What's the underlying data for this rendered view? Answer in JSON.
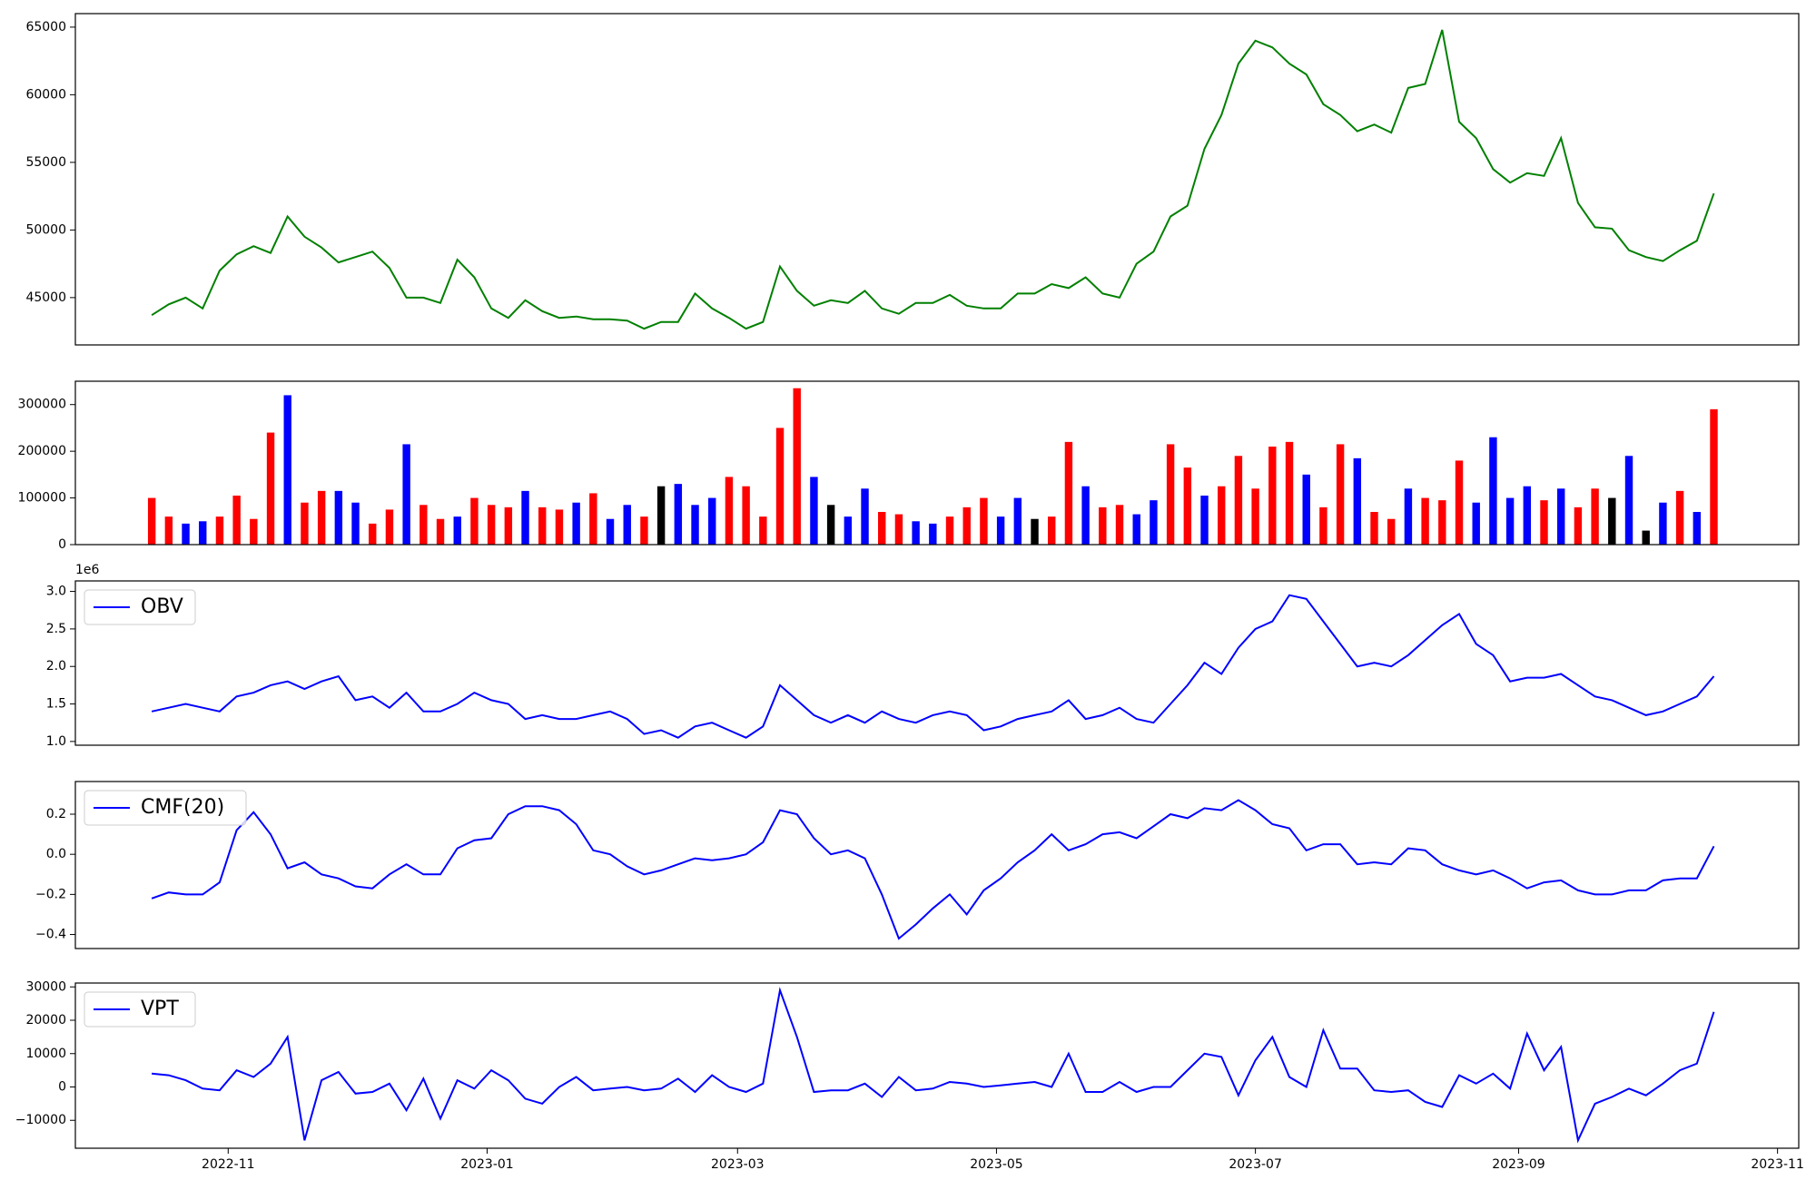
{
  "chart_data": [
    {
      "type": "line",
      "color": "green",
      "x": [
        19279,
        19283,
        19287,
        19291,
        19295,
        19299,
        19303,
        19307,
        19311,
        19315,
        19319,
        19323,
        19327,
        19331,
        19335,
        19339,
        19343,
        19347,
        19351,
        19355,
        19359,
        19363,
        19367,
        19371,
        19375,
        19379,
        19383,
        19387,
        19391,
        19395,
        19399,
        19403,
        19407,
        19411,
        19415,
        19419,
        19423,
        19427,
        19431,
        19435,
        19439,
        19443,
        19447,
        19451,
        19455,
        19459,
        19463,
        19467,
        19471,
        19475,
        19479,
        19483,
        19487,
        19491,
        19495,
        19499,
        19503,
        19507,
        19511,
        19515,
        19519,
        19523,
        19527,
        19531,
        19535,
        19539,
        19543,
        19547,
        19551,
        19555,
        19559,
        19563,
        19567,
        19571,
        19575,
        19579,
        19583,
        19587,
        19591,
        19595,
        19599,
        19603,
        19607,
        19611,
        19615,
        19619,
        19623,
        19627,
        19631,
        19635,
        19639,
        19643,
        19647
      ],
      "values": [
        43700,
        44500,
        45000,
        44200,
        47000,
        48200,
        48800,
        48300,
        51000,
        49500,
        48700,
        47600,
        48000,
        48400,
        47200,
        45000,
        45000,
        44600,
        47800,
        46500,
        44200,
        43500,
        44800,
        44000,
        43500,
        43600,
        43400,
        43400,
        43300,
        42700,
        43200,
        43200,
        45300,
        44200,
        43500,
        42700,
        43200,
        47300,
        45500,
        44400,
        44800,
        44600,
        45500,
        44200,
        43800,
        44600,
        44600,
        45200,
        44400,
        44200,
        44200,
        45300,
        45300,
        46000,
        45700,
        46500,
        45300,
        45000,
        47500,
        48400,
        51000,
        51800,
        56000,
        58500,
        62300,
        64000,
        63500,
        62300,
        61500,
        59300,
        58500,
        57300,
        57800,
        57200,
        60500,
        60800,
        64800,
        58000,
        56800,
        54500,
        53500,
        54200,
        54000,
        56800,
        52000,
        50200,
        50100,
        48500,
        48000,
        47700,
        48500,
        49200,
        52700
      ],
      "xlim": [
        19261,
        19667
      ],
      "ylim": [
        41500,
        66000
      ],
      "yticks": [
        45000,
        50000,
        55000,
        60000,
        65000
      ]
    },
    {
      "type": "bar",
      "values": [
        100000,
        60000,
        45000,
        50000,
        60000,
        105000,
        55000,
        240000,
        320000,
        90000,
        115000,
        115000,
        90000,
        45000,
        75000,
        215000,
        85000,
        55000,
        60000,
        100000,
        85000,
        80000,
        115000,
        80000,
        75000,
        90000,
        110000,
        55000,
        85000,
        60000,
        125000,
        130000,
        85000,
        100000,
        145000,
        125000,
        60000,
        250000,
        335000,
        145000,
        85000,
        60000,
        120000,
        70000,
        65000,
        50000,
        45000,
        60000,
        80000,
        100000,
        60000,
        100000,
        55000,
        60000,
        220000,
        125000,
        80000,
        85000,
        65000,
        95000,
        215000,
        165000,
        105000,
        125000,
        190000,
        120000,
        210000,
        220000,
        150000,
        80000,
        215000,
        185000,
        70000,
        55000,
        120000,
        100000,
        95000,
        180000,
        90000,
        230000,
        100000,
        125000,
        95000,
        120000,
        80000,
        120000,
        100000,
        190000,
        30000,
        90000,
        115000,
        70000,
        290000
      ],
      "colors": [
        "#ff0000",
        "#ff0000",
        "#0000ff",
        "#0000ff",
        "#ff0000",
        "#ff0000",
        "#ff0000",
        "#ff0000",
        "#0000ff",
        "#ff0000",
        "#ff0000",
        "#0000ff",
        "#0000ff",
        "#ff0000",
        "#ff0000",
        "#0000ff",
        "#ff0000",
        "#ff0000",
        "#0000ff",
        "#ff0000",
        "#ff0000",
        "#ff0000",
        "#0000ff",
        "#ff0000",
        "#ff0000",
        "#0000ff",
        "#ff0000",
        "#0000ff",
        "#0000ff",
        "#ff0000",
        "#000000",
        "#0000ff",
        "#0000ff",
        "#0000ff",
        "#ff0000",
        "#ff0000",
        "#ff0000",
        "#ff0000",
        "#ff0000",
        "#0000ff",
        "#000000",
        "#0000ff",
        "#0000ff",
        "#ff0000",
        "#ff0000",
        "#0000ff",
        "#0000ff",
        "#ff0000",
        "#ff0000",
        "#ff0000",
        "#0000ff",
        "#0000ff",
        "#000000",
        "#ff0000",
        "#ff0000",
        "#0000ff",
        "#ff0000",
        "#ff0000",
        "#0000ff",
        "#0000ff",
        "#ff0000",
        "#ff0000",
        "#0000ff",
        "#ff0000",
        "#ff0000",
        "#ff0000",
        "#ff0000",
        "#ff0000",
        "#0000ff",
        "#ff0000",
        "#ff0000",
        "#0000ff",
        "#ff0000",
        "#ff0000",
        "#0000ff",
        "#ff0000",
        "#ff0000",
        "#ff0000",
        "#0000ff",
        "#0000ff",
        "#0000ff",
        "#0000ff",
        "#ff0000",
        "#0000ff",
        "#ff0000",
        "#ff0000",
        "#000000",
        "#0000ff",
        "#000000",
        "#0000ff",
        "#ff0000",
        "#0000ff",
        "#ff0000"
      ],
      "ylim": [
        0,
        350000
      ],
      "yticks": [
        0,
        100000,
        200000,
        300000
      ]
    },
    {
      "type": "line",
      "legend": "upper left",
      "series": [
        {
          "name": "OBV",
          "color": "blue",
          "values": [
            1400000,
            1450000,
            1500000,
            1450000,
            1400000,
            1600000,
            1650000,
            1750000,
            1800000,
            1700000,
            1800000,
            1870000,
            1550000,
            1600000,
            1450000,
            1650000,
            1400000,
            1400000,
            1500000,
            1650000,
            1550000,
            1500000,
            1300000,
            1350000,
            1300000,
            1300000,
            1350000,
            1400000,
            1300000,
            1100000,
            1150000,
            1050000,
            1200000,
            1250000,
            1150000,
            1050000,
            1200000,
            1750000,
            1550000,
            1350000,
            1250000,
            1350000,
            1250000,
            1400000,
            1300000,
            1250000,
            1350000,
            1400000,
            1350000,
            1150000,
            1200000,
            1300000,
            1350000,
            1400000,
            1550000,
            1300000,
            1350000,
            1450000,
            1300000,
            1250000,
            1500000,
            1750000,
            2050000,
            1900000,
            2250000,
            2500000,
            2600000,
            2950000,
            2900000,
            2600000,
            2300000,
            2000000,
            2050000,
            2000000,
            2150000,
            2350000,
            2550000,
            2700000,
            2300000,
            2150000,
            1800000,
            1850000,
            1850000,
            1900000,
            1750000,
            1600000,
            1550000,
            1450000,
            1350000,
            1400000,
            1500000,
            1600000,
            1870000
          ]
        }
      ],
      "ylim": [
        950000,
        3140000
      ],
      "y_offset_label": "1e6",
      "yticks": [
        {
          "value": 1000000,
          "label": "1.0"
        },
        {
          "value": 1500000,
          "label": "1.5"
        },
        {
          "value": 2000000,
          "label": "2.0"
        },
        {
          "value": 2500000,
          "label": "2.5"
        },
        {
          "value": 3000000,
          "label": "3.0"
        }
      ]
    },
    {
      "type": "line",
      "legend": "upper left",
      "series": [
        {
          "name": "CMF(20)",
          "color": "blue",
          "values": [
            -0.22,
            -0.19,
            -0.2,
            -0.2,
            -0.14,
            0.12,
            0.21,
            0.1,
            -0.07,
            -0.04,
            -0.1,
            -0.12,
            -0.16,
            -0.17,
            -0.1,
            -0.05,
            -0.1,
            -0.1,
            0.03,
            0.07,
            0.08,
            0.2,
            0.24,
            0.24,
            0.22,
            0.15,
            0.02,
            0,
            -0.06,
            -0.1,
            -0.08,
            -0.05,
            -0.02,
            -0.03,
            -0.02,
            0,
            0.06,
            0.22,
            0.2,
            0.08,
            0,
            0.02,
            -0.02,
            -0.2,
            -0.42,
            -0.35,
            -0.27,
            -0.2,
            -0.3,
            -0.18,
            -0.12,
            -0.04,
            0.02,
            0.1,
            0.02,
            0.05,
            0.1,
            0.11,
            0.08,
            0.14,
            0.2,
            0.18,
            0.23,
            0.22,
            0.27,
            0.22,
            0.15,
            0.13,
            0.02,
            0.05,
            0.05,
            -0.05,
            -0.04,
            -0.05,
            0.03,
            0.02,
            -0.05,
            -0.08,
            -0.1,
            -0.08,
            -0.12,
            -0.17,
            -0.14,
            -0.13,
            -0.18,
            -0.2,
            -0.2,
            -0.18,
            -0.18,
            -0.13,
            -0.12,
            -0.12,
            0.04
          ]
        }
      ],
      "ylim": [
        -0.47,
        0.363
      ],
      "yticks": [
        {
          "value": -0.4,
          "label": "−0.4"
        },
        {
          "value": -0.2,
          "label": "−0.2"
        },
        {
          "value": 0,
          "label": "0.0"
        },
        0.2
      ]
    },
    {
      "type": "line",
      "legend": "upper left",
      "series": [
        {
          "name": "VPT",
          "color": "blue",
          "values": [
            4000,
            3500,
            2000,
            -500,
            -1000,
            5000,
            3000,
            7000,
            15000,
            -16000,
            2000,
            4500,
            -2000,
            -1500,
            1000,
            -7000,
            2500,
            -9500,
            2000,
            -500,
            5000,
            2000,
            -3500,
            -5000,
            0,
            3000,
            -1000,
            -500,
            0,
            -1000,
            -500,
            2500,
            -1500,
            3500,
            0,
            -1500,
            1000,
            29000,
            15000,
            -1500,
            -1000,
            -1000,
            1000,
            -3000,
            3000,
            -1000,
            -500,
            1500,
            1000,
            0,
            500,
            1000,
            1500,
            0,
            10000,
            -1500,
            -1500,
            1500,
            -1500,
            0,
            0,
            5000,
            10000,
            9000,
            -2500,
            8000,
            15000,
            3000,
            0,
            17000,
            5500,
            5500,
            -1000,
            -1500,
            -1000,
            -4500,
            -6000,
            3500,
            1000,
            4000,
            -500,
            16000,
            5000,
            12000,
            -16000,
            -5000,
            -3000,
            -500,
            -2500,
            1000,
            5000,
            7000,
            22500
          ]
        }
      ],
      "ylim": [
        -18370,
        31160
      ],
      "yticks": [
        {
          "value": -10000,
          "label": "−10000"
        },
        0,
        10000,
        20000,
        30000
      ],
      "xticks": [
        {
          "value": 19297,
          "label": "2022-11"
        },
        {
          "value": 19358,
          "label": "2023-01"
        },
        {
          "value": 19417,
          "label": "2023-03"
        },
        {
          "value": 19478,
          "label": "2023-05"
        },
        {
          "value": 19539,
          "label": "2023-07"
        },
        {
          "value": 19601,
          "label": "2023-09"
        },
        {
          "value": 19662,
          "label": "2023-11"
        }
      ]
    }
  ]
}
